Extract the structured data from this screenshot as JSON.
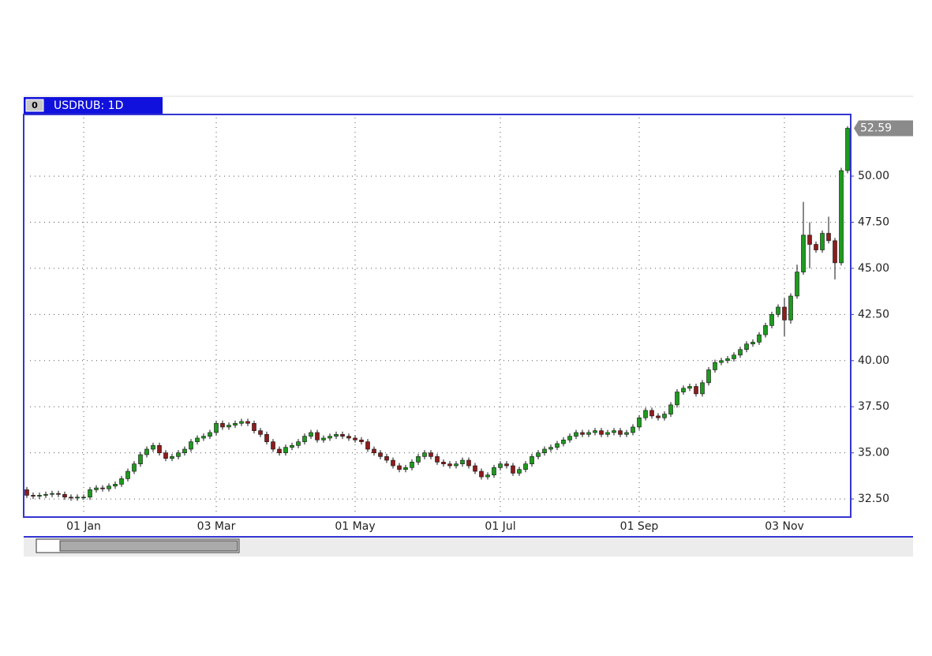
{
  "chart_data": {
    "type": "candlestick",
    "title": "USDRUB: 1D",
    "panel_label": "0",
    "categories": [
      null,
      null,
      null,
      null,
      null,
      null,
      null,
      null,
      null,
      "01 Jan",
      null,
      null,
      null,
      null,
      null,
      null,
      null,
      null,
      null,
      null,
      null,
      null,
      null,
      null,
      null,
      null,
      null,
      null,
      null,
      null,
      "03 Mar",
      null,
      null,
      null,
      null,
      null,
      null,
      null,
      null,
      null,
      null,
      null,
      null,
      null,
      null,
      null,
      null,
      null,
      null,
      null,
      null,
      null,
      "01 May",
      null,
      null,
      null,
      null,
      null,
      null,
      null,
      null,
      null,
      null,
      null,
      null,
      null,
      null,
      null,
      null,
      null,
      null,
      null,
      null,
      null,
      null,
      "01 Jul",
      null,
      null,
      null,
      null,
      null,
      null,
      null,
      null,
      null,
      null,
      null,
      null,
      null,
      null,
      null,
      null,
      null,
      null,
      null,
      null,
      null,
      "01 Sep",
      null,
      null,
      null,
      null,
      null,
      null,
      null,
      null,
      null,
      null,
      null,
      null,
      null,
      null,
      null,
      null,
      null,
      null,
      null,
      null,
      null,
      null,
      "03 Nov",
      null,
      null,
      null,
      null,
      null,
      null,
      null,
      null,
      null,
      null
    ],
    "open": [
      33.0,
      32.7,
      32.65,
      32.7,
      32.75,
      32.8,
      32.75,
      32.6,
      32.55,
      32.6,
      32.6,
      33.0,
      33.1,
      33.05,
      33.2,
      33.3,
      33.6,
      34.0,
      34.4,
      34.9,
      35.2,
      35.4,
      35.0,
      34.7,
      34.8,
      35.0,
      35.2,
      35.6,
      35.8,
      35.9,
      36.1,
      36.6,
      36.4,
      36.5,
      36.6,
      36.7,
      36.6,
      36.2,
      36.0,
      35.6,
      35.2,
      35.0,
      35.3,
      35.4,
      35.6,
      35.9,
      36.1,
      35.7,
      35.8,
      35.9,
      36.0,
      35.9,
      35.8,
      35.7,
      35.6,
      35.2,
      35.0,
      34.8,
      34.6,
      34.3,
      34.1,
      34.2,
      34.5,
      34.8,
      35.0,
      34.8,
      34.5,
      34.4,
      34.3,
      34.4,
      34.6,
      34.3,
      34.0,
      33.7,
      33.8,
      34.2,
      34.4,
      34.3,
      33.9,
      34.1,
      34.4,
      34.8,
      35.0,
      35.2,
      35.3,
      35.5,
      35.7,
      35.9,
      36.1,
      36.0,
      36.1,
      36.2,
      36.0,
      36.1,
      36.2,
      36.0,
      36.1,
      36.4,
      36.9,
      37.3,
      37.0,
      36.9,
      37.1,
      37.6,
      38.3,
      38.5,
      38.6,
      38.2,
      38.8,
      39.5,
      39.9,
      40.0,
      40.1,
      40.3,
      40.6,
      40.9,
      41.0,
      41.4,
      41.9,
      42.5,
      42.9,
      42.2,
      43.5,
      44.8,
      46.8,
      46.3,
      46.0,
      46.9,
      46.5,
      45.3,
      50.3
    ],
    "high": [
      33.15,
      32.85,
      32.85,
      32.9,
      32.95,
      32.95,
      32.9,
      32.75,
      32.75,
      32.75,
      33.15,
      33.25,
      33.25,
      33.35,
      33.45,
      33.75,
      34.15,
      34.55,
      35.05,
      35.35,
      35.55,
      35.55,
      35.15,
      34.95,
      35.15,
      35.35,
      35.75,
      35.95,
      36.05,
      36.25,
      36.75,
      36.75,
      36.65,
      36.75,
      36.85,
      36.85,
      36.75,
      36.35,
      36.15,
      35.75,
      35.35,
      35.45,
      35.55,
      35.75,
      36.05,
      36.25,
      36.25,
      35.95,
      36.05,
      36.15,
      36.15,
      36.05,
      35.95,
      35.85,
      35.75,
      35.35,
      35.15,
      34.95,
      34.75,
      34.45,
      34.35,
      34.65,
      34.95,
      35.15,
      35.15,
      34.95,
      34.65,
      34.55,
      34.55,
      34.75,
      34.75,
      34.45,
      34.15,
      33.95,
      34.35,
      34.55,
      34.55,
      34.45,
      34.25,
      34.55,
      34.95,
      35.15,
      35.35,
      35.45,
      35.65,
      35.85,
      36.05,
      36.25,
      36.25,
      36.25,
      36.35,
      36.35,
      36.25,
      36.35,
      36.35,
      36.25,
      36.55,
      37.05,
      37.45,
      37.45,
      37.15,
      37.25,
      37.75,
      38.45,
      38.65,
      38.75,
      38.75,
      38.95,
      39.65,
      40.05,
      40.15,
      40.25,
      40.45,
      40.75,
      41.05,
      41.15,
      41.55,
      42.05,
      42.65,
      43.05,
      43.4,
      43.65,
      45.2,
      48.6,
      47.5,
      46.45,
      47.05,
      47.8,
      46.65,
      50.45,
      52.7
    ],
    "low": [
      32.55,
      32.5,
      32.5,
      32.55,
      32.6,
      32.6,
      32.45,
      32.4,
      32.4,
      32.45,
      32.45,
      32.85,
      32.9,
      32.9,
      33.05,
      33.15,
      33.45,
      33.85,
      34.25,
      34.75,
      35.05,
      34.85,
      34.55,
      34.55,
      34.65,
      34.85,
      35.05,
      35.45,
      35.65,
      35.75,
      35.95,
      36.25,
      36.25,
      36.35,
      36.45,
      36.45,
      36.05,
      35.85,
      35.45,
      35.05,
      34.85,
      34.85,
      35.15,
      35.25,
      35.45,
      35.75,
      35.55,
      35.55,
      35.65,
      35.75,
      35.75,
      35.65,
      35.55,
      35.45,
      35.05,
      34.85,
      34.65,
      34.45,
      34.15,
      33.95,
      33.95,
      34.05,
      34.35,
      34.65,
      34.65,
      34.35,
      34.25,
      34.15,
      34.15,
      34.25,
      34.15,
      33.85,
      33.55,
      33.55,
      33.65,
      34.05,
      34.15,
      33.75,
      33.75,
      33.95,
      34.25,
      34.65,
      34.85,
      35.05,
      35.15,
      35.35,
      35.55,
      35.75,
      35.85,
      35.85,
      35.95,
      35.85,
      35.85,
      35.95,
      35.85,
      35.85,
      35.95,
      36.25,
      36.75,
      36.85,
      36.75,
      36.75,
      36.95,
      37.45,
      38.15,
      38.35,
      38.05,
      38.05,
      38.65,
      39.35,
      39.75,
      39.85,
      39.95,
      40.15,
      40.45,
      40.75,
      40.85,
      41.25,
      41.75,
      42.35,
      41.3,
      42.0,
      43.35,
      44.65,
      45.0,
      45.85,
      45.85,
      46.35,
      44.4,
      45.15,
      50.15
    ],
    "close": [
      32.7,
      32.65,
      32.7,
      32.75,
      32.8,
      32.75,
      32.6,
      32.55,
      32.6,
      32.6,
      33.0,
      33.1,
      33.05,
      33.2,
      33.3,
      33.6,
      34.0,
      34.4,
      34.9,
      35.2,
      35.4,
      35.0,
      34.7,
      34.8,
      35.0,
      35.2,
      35.6,
      35.8,
      35.9,
      36.1,
      36.6,
      36.4,
      36.5,
      36.6,
      36.7,
      36.6,
      36.2,
      36.0,
      35.6,
      35.2,
      35.0,
      35.3,
      35.4,
      35.6,
      35.9,
      36.1,
      35.7,
      35.8,
      35.9,
      36.0,
      35.9,
      35.8,
      35.7,
      35.6,
      35.2,
      35.0,
      34.8,
      34.6,
      34.3,
      34.1,
      34.2,
      34.5,
      34.8,
      35.0,
      34.8,
      34.5,
      34.4,
      34.3,
      34.4,
      34.6,
      34.3,
      34.0,
      33.7,
      33.8,
      34.2,
      34.4,
      34.3,
      33.9,
      34.1,
      34.4,
      34.8,
      35.0,
      35.2,
      35.3,
      35.5,
      35.7,
      35.9,
      36.1,
      36.0,
      36.1,
      36.2,
      36.0,
      36.1,
      36.2,
      36.0,
      36.1,
      36.4,
      36.9,
      37.3,
      37.0,
      36.9,
      37.1,
      37.6,
      38.3,
      38.5,
      38.6,
      38.2,
      38.8,
      39.5,
      39.9,
      40.0,
      40.1,
      40.3,
      40.6,
      40.9,
      41.0,
      41.4,
      41.9,
      42.5,
      42.9,
      42.2,
      43.5,
      44.8,
      46.8,
      46.3,
      46.0,
      46.9,
      46.5,
      45.3,
      50.3,
      52.59
    ],
    "up_color": "#1e9a1e",
    "down_color": "#8e1c1c",
    "ylim": [
      31.52,
      53.34
    ],
    "yticks": [
      {
        "value": 32.5,
        "label": "32.50"
      },
      {
        "value": 35,
        "label": "35.00"
      },
      {
        "value": 37.5,
        "label": "37.50"
      },
      {
        "value": 40,
        "label": "40.00"
      },
      {
        "value": 42.5,
        "label": "42.50"
      },
      {
        "value": 45,
        "label": "45.00"
      },
      {
        "value": 47.5,
        "label": "47.50"
      },
      {
        "value": 50,
        "label": "50.00"
      }
    ],
    "last_price": 52.59,
    "grid": true
  }
}
